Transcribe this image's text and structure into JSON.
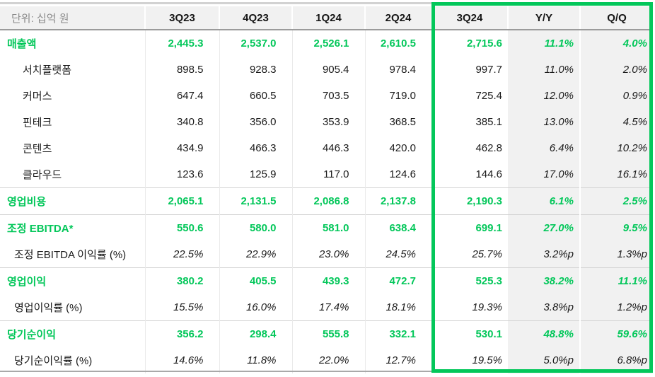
{
  "unit_label": "단위: 십억 원",
  "colors": {
    "accent_green": "#03c75a",
    "header_bg": "#f1f1f1",
    "shade_bg": "#f1f1f1"
  },
  "columns": [
    "3Q23",
    "4Q23",
    "1Q24",
    "2Q24",
    "3Q24",
    "Y/Y",
    "Q/Q"
  ],
  "highlight": {
    "columns": [
      "3Q24",
      "Y/Y",
      "Q/Q"
    ],
    "border_color": "#03c75a"
  },
  "rows": [
    {
      "label": "매출액",
      "type": "section",
      "separator": false,
      "values": [
        "2,445.3",
        "2,537.0",
        "2,526.1",
        "2,610.5",
        "2,715.6",
        "11.1%",
        "4.0%"
      ]
    },
    {
      "label": "서치플랫폼",
      "type": "sub",
      "separator": false,
      "values": [
        "898.5",
        "928.3",
        "905.4",
        "978.4",
        "997.7",
        "11.0%",
        "2.0%"
      ]
    },
    {
      "label": "커머스",
      "type": "sub",
      "separator": false,
      "values": [
        "647.4",
        "660.5",
        "703.5",
        "719.0",
        "725.4",
        "12.0%",
        "0.9%"
      ]
    },
    {
      "label": "핀테크",
      "type": "sub",
      "separator": false,
      "values": [
        "340.8",
        "356.0",
        "353.9",
        "368.5",
        "385.1",
        "13.0%",
        "4.5%"
      ]
    },
    {
      "label": "콘텐츠",
      "type": "sub",
      "separator": false,
      "values": [
        "434.9",
        "466.3",
        "446.3",
        "420.0",
        "462.8",
        "6.4%",
        "10.2%"
      ]
    },
    {
      "label": "클라우드",
      "type": "sub",
      "separator": false,
      "values": [
        "123.6",
        "125.9",
        "117.0",
        "124.6",
        "144.6",
        "17.0%",
        "16.1%"
      ]
    },
    {
      "label": "영업비용",
      "type": "section",
      "separator": true,
      "values": [
        "2,065.1",
        "2,131.5",
        "2,086.8",
        "2,137.8",
        "2,190.3",
        "6.1%",
        "2.5%"
      ]
    },
    {
      "label": "조정 EBITDA*",
      "type": "section",
      "separator": true,
      "values": [
        "550.6",
        "580.0",
        "581.0",
        "638.4",
        "699.1",
        "27.0%",
        "9.5%"
      ]
    },
    {
      "label": "조정 EBITDA 이익률 (%)",
      "type": "ratio",
      "separator": false,
      "values": [
        "22.5%",
        "22.9%",
        "23.0%",
        "24.5%",
        "25.7%",
        "3.2%p",
        "1.3%p"
      ]
    },
    {
      "label": "영업이익",
      "type": "section",
      "separator": true,
      "values": [
        "380.2",
        "405.5",
        "439.3",
        "472.7",
        "525.3",
        "38.2%",
        "11.1%"
      ]
    },
    {
      "label": "영업이익률 (%)",
      "type": "ratio",
      "separator": false,
      "values": [
        "15.5%",
        "16.0%",
        "17.4%",
        "18.1%",
        "19.3%",
        "3.8%p",
        "1.2%p"
      ]
    },
    {
      "label": "당기순이익",
      "type": "section",
      "separator": true,
      "values": [
        "356.2",
        "298.4",
        "555.8",
        "332.1",
        "530.1",
        "48.8%",
        "59.6%"
      ]
    },
    {
      "label": "당기순이익률 (%)",
      "type": "ratio",
      "separator": false,
      "values": [
        "14.6%",
        "11.8%",
        "22.0%",
        "12.7%",
        "19.5%",
        "5.0%p",
        "6.8%p"
      ]
    }
  ]
}
